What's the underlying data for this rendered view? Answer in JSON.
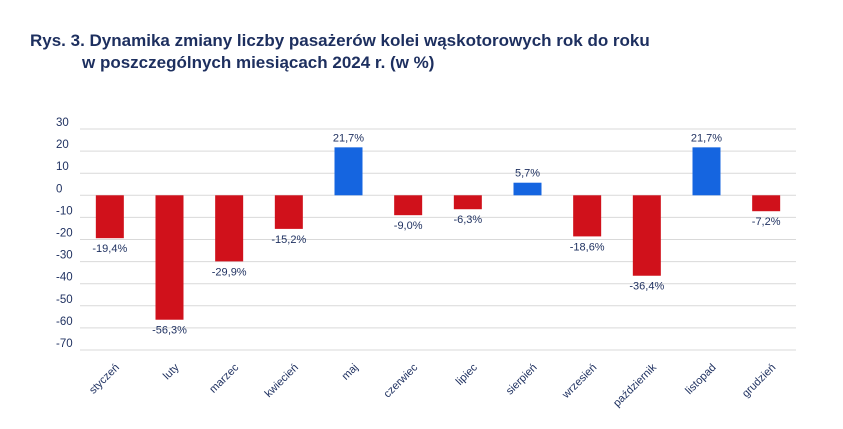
{
  "chart_data": {
    "type": "bar",
    "title_line1": "Rys. 3. Dynamika zmiany liczby pasażerów kolei wąskotorowych rok do roku",
    "title_line2": "w poszczególnych miesiącach 2024 r. (w %)",
    "xlabel": "",
    "ylabel": "",
    "ylim": [
      -70,
      30
    ],
    "yticks": [
      30,
      20,
      10,
      0,
      -10,
      -20,
      -30,
      -40,
      -50,
      -60,
      -70
    ],
    "grid": true,
    "legend": "none",
    "categories": [
      "styczeń",
      "luty",
      "marzec",
      "kwiecień",
      "maj",
      "czerwiec",
      "lipiec",
      "sierpień",
      "wrzesień",
      "październik",
      "listopad",
      "grudzień"
    ],
    "values": [
      -19.4,
      -56.3,
      -29.9,
      -15.2,
      21.7,
      -9.0,
      -6.3,
      5.7,
      -18.6,
      -36.4,
      21.7,
      -7.2
    ],
    "labels": [
      "-19,4%",
      "-56,3%",
      "-29,9%",
      "-15,2%",
      "21,7%",
      "-9,0%",
      "-6,3%",
      "5,7%",
      "-18,6%",
      "-36,4%",
      "21,7%",
      "-7,2%"
    ],
    "colors": {
      "positive": "#1565e0",
      "negative": "#d0111b",
      "grid": "#d9d9d9",
      "text": "#1d2f5f"
    }
  }
}
